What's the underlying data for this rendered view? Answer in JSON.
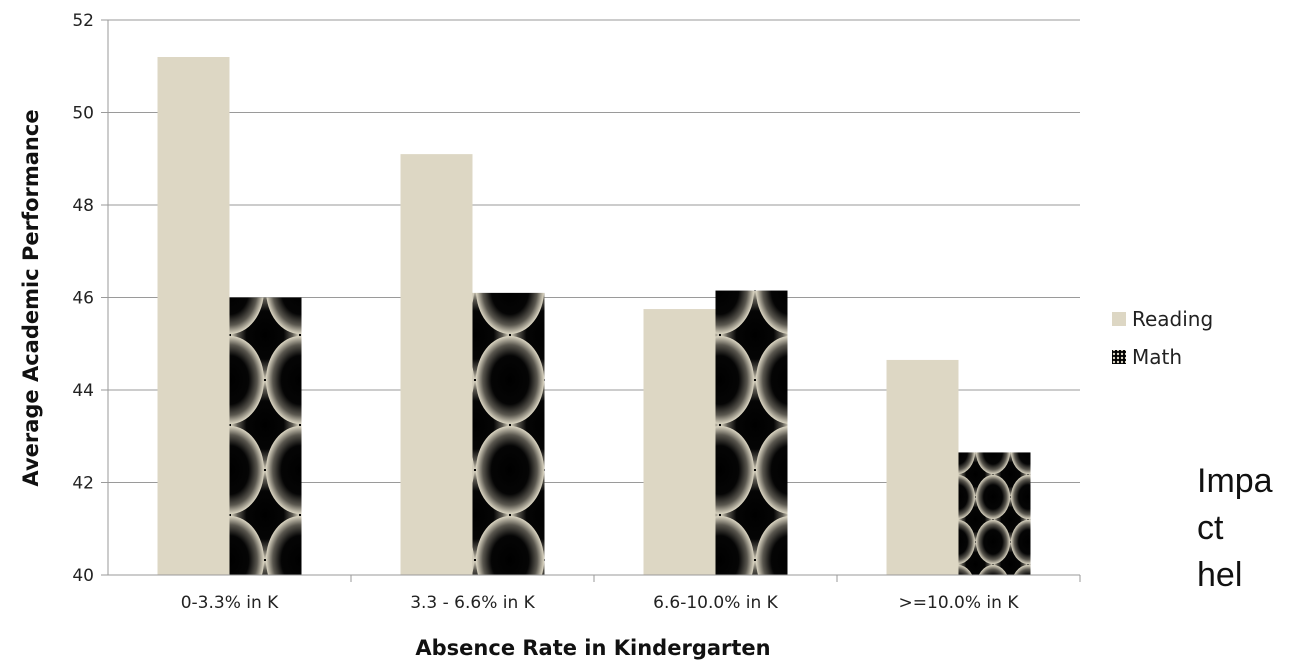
{
  "chart_data": {
    "type": "bar",
    "categories": [
      "0-3.3% in K",
      "3.3 - 6.6% in K",
      "6.6-10.0% in K",
      ">=10.0% in K"
    ],
    "series": [
      {
        "name": "Reading",
        "values": [
          51.2,
          49.1,
          45.75,
          44.65
        ],
        "color": "#ddd7c4",
        "fill": "solid"
      },
      {
        "name": "Math",
        "values": [
          46.0,
          46.1,
          46.15,
          42.65
        ],
        "color": "#000000",
        "fill": "ellipse-pattern"
      }
    ],
    "xlabel": "Absence Rate in Kindergarten",
    "ylabel": "Average Academic Performance",
    "ylim": [
      40,
      52
    ],
    "yticks": [
      40,
      42,
      44,
      46,
      48,
      50,
      52
    ],
    "grid": true,
    "legend": "right"
  },
  "side_text": [
    "Impa",
    "ct",
    "hel"
  ]
}
